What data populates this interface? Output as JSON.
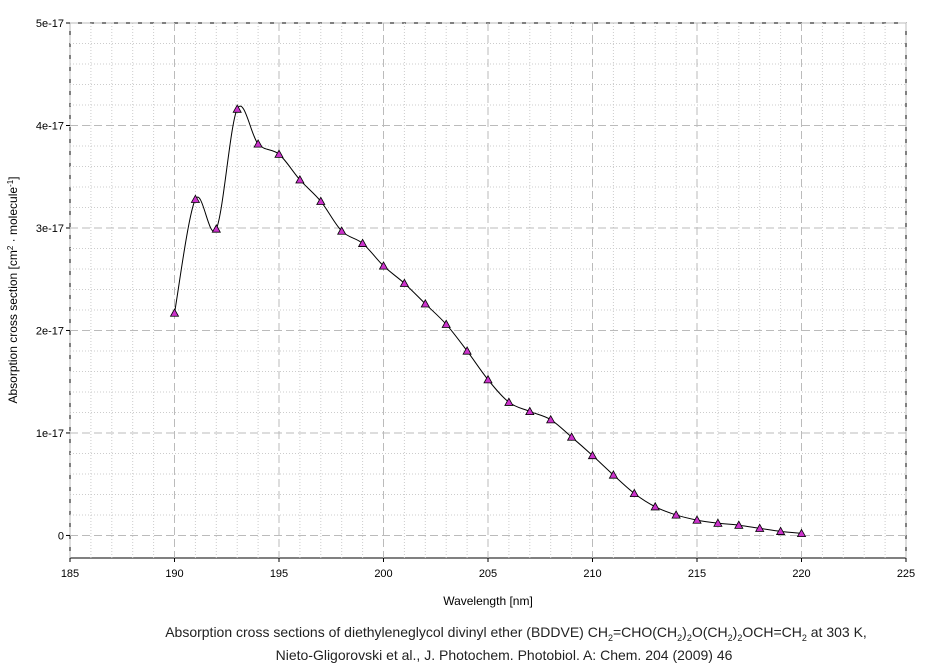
{
  "chart_data": {
    "type": "line",
    "xlabel": "Wavelength [nm]",
    "ylabel": {
      "parts": [
        {
          "text": "Absorption cross section [cm",
          "sup": false
        },
        {
          "text": "2",
          "sup": true
        },
        {
          "text": " · molecule",
          "sup": false
        },
        {
          "text": "-1",
          "sup": true
        },
        {
          "text": "]",
          "sup": false
        }
      ]
    },
    "xlim": [
      185,
      225
    ],
    "ylim": [
      -2.2e-18,
      5e-17
    ],
    "x_ticks": [
      185,
      190,
      195,
      200,
      205,
      210,
      215,
      220,
      225
    ],
    "y_ticks": [
      {
        "value": 0,
        "label": "0"
      },
      {
        "value": 1e-17,
        "label": "1e-17"
      },
      {
        "value": 2e-17,
        "label": "2e-17"
      },
      {
        "value": 3e-17,
        "label": "3e-17"
      },
      {
        "value": 4e-17,
        "label": "4e-17"
      },
      {
        "value": 5e-17,
        "label": "5e-17"
      }
    ],
    "grid": true,
    "marker": "triangle",
    "marker_color": "#cc33cc",
    "line_color": "#000000",
    "series": [
      {
        "x": [
          190,
          191,
          192,
          193,
          194,
          195,
          196,
          197,
          198,
          199,
          200,
          201,
          202,
          203,
          204,
          205,
          206,
          207,
          208,
          209,
          210,
          211,
          212,
          213,
          214,
          215,
          216,
          217,
          218,
          219,
          220
        ],
        "y": [
          2.17e-17,
          3.28e-17,
          2.99e-17,
          4.16e-17,
          3.82e-17,
          3.72e-17,
          3.47e-17,
          3.26e-17,
          2.97e-17,
          2.85e-17,
          2.63e-17,
          2.46e-17,
          2.26e-17,
          2.06e-17,
          1.8e-17,
          1.52e-17,
          1.3e-17,
          1.21e-17,
          1.13e-17,
          9.6e-18,
          7.8e-18,
          5.9e-18,
          4.1e-18,
          2.8e-18,
          2e-18,
          1.5e-18,
          1.2e-18,
          1e-18,
          7e-19,
          4e-19,
          2e-19
        ]
      }
    ]
  },
  "caption": {
    "line1": [
      {
        "text": "Absorption cross sections of diethyleneglycol divinyl ether (BDDVE) CH",
        "sub": false
      },
      {
        "text": "2",
        "sub": true
      },
      {
        "text": "=CHO(CH",
        "sub": false
      },
      {
        "text": "2",
        "sub": true
      },
      {
        "text": ")",
        "sub": false
      },
      {
        "text": "2",
        "sub": true
      },
      {
        "text": "O(CH",
        "sub": false
      },
      {
        "text": "2",
        "sub": true
      },
      {
        "text": ")",
        "sub": false
      },
      {
        "text": "2",
        "sub": true
      },
      {
        "text": "OCH=CH",
        "sub": false
      },
      {
        "text": "2",
        "sub": true
      },
      {
        "text": " at 303 K,",
        "sub": false
      }
    ],
    "line2": "Nieto-Gligorovski et al., J. Photochem. Photobiol. A: Chem. 204 (2009) 46"
  }
}
